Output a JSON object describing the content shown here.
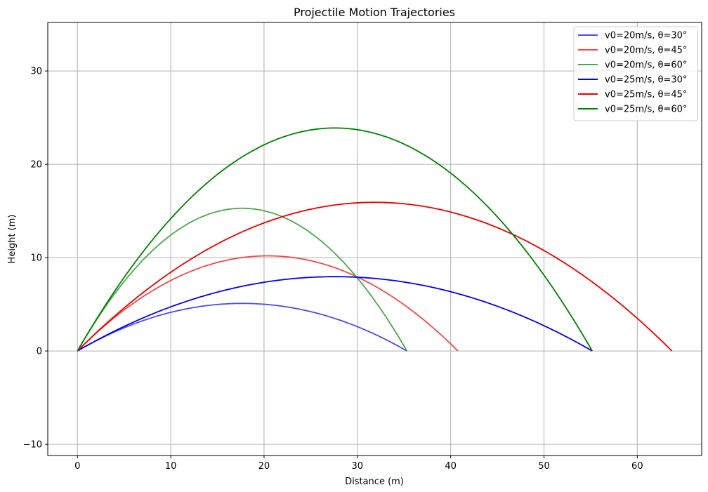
{
  "chart_data": {
    "type": "line",
    "title": "Projectile Motion Trajectories",
    "xlabel": "Distance (m)",
    "ylabel": "Height (m)",
    "xlim": [
      -3.18,
      66.9
    ],
    "ylim": [
      -11.2,
      35.2
    ],
    "xticks": [
      0,
      10,
      20,
      30,
      40,
      50,
      60
    ],
    "yticks": [
      -10,
      0,
      10,
      20,
      30
    ],
    "grid": true,
    "legend_position": "top-right",
    "gravity": 9.81,
    "series": [
      {
        "name": "v0=20m/s, θ=30°",
        "v0": 20,
        "angle": 30,
        "color": "#4b4bee"
      },
      {
        "name": "v0=20m/s, θ=45°",
        "v0": 20,
        "angle": 45,
        "color": "#f04b4b"
      },
      {
        "name": "v0=20m/s, θ=60°",
        "v0": 20,
        "angle": 60,
        "color": "#4ca64c"
      },
      {
        "name": "v0=25m/s, θ=30°",
        "v0": 25,
        "angle": 30,
        "color": "#0000ee"
      },
      {
        "name": "v0=25m/s, θ=45°",
        "v0": 25,
        "angle": 45,
        "color": "#ee0000"
      },
      {
        "name": "v0=25m/s, θ=60°",
        "v0": 25,
        "angle": 60,
        "color": "#008000"
      }
    ]
  }
}
